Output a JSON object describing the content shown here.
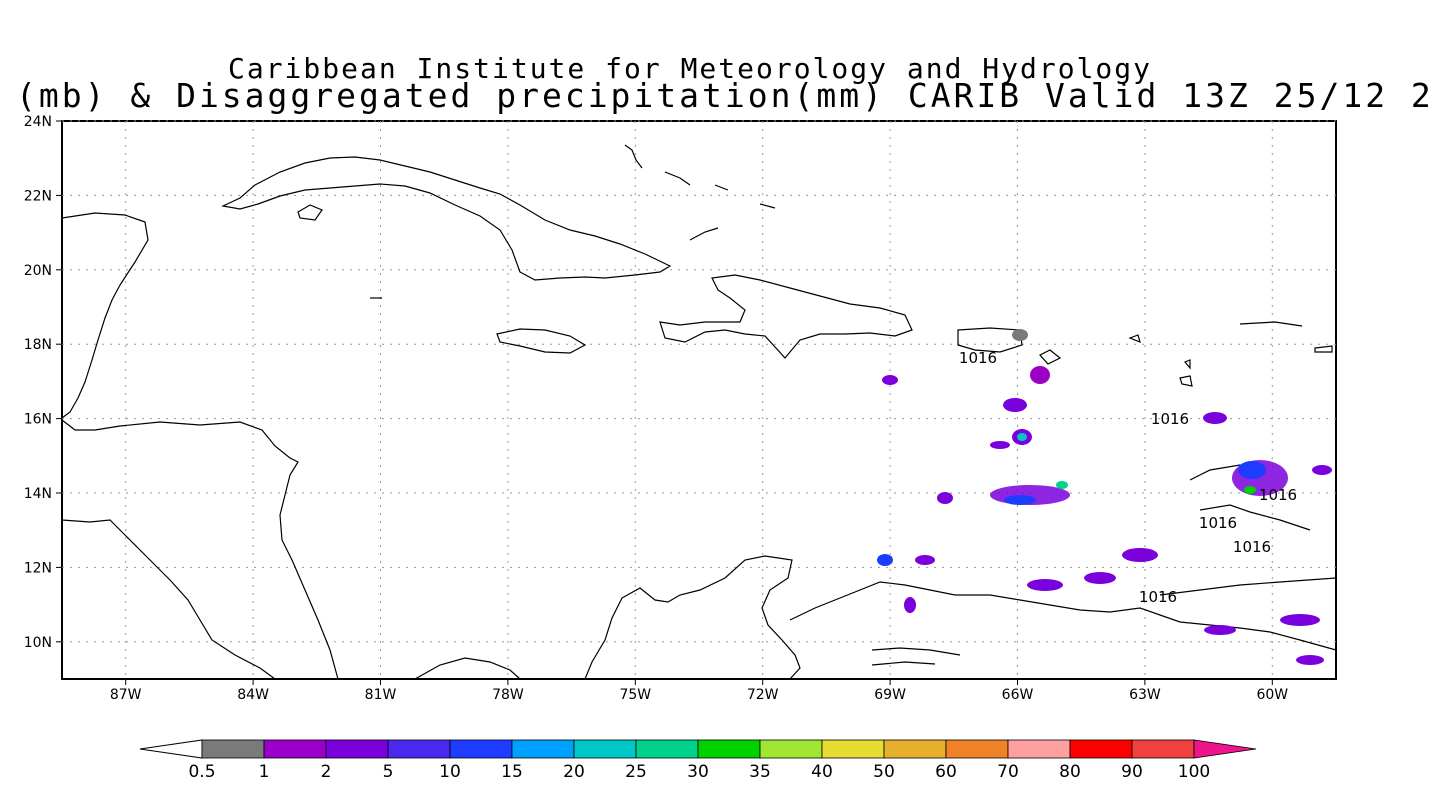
{
  "title": {
    "line1": "Caribbean Institute for Meteorology and Hydrology",
    "line2": "(mb) & Disaggregated precipitation(mm) CARIB Valid 13Z 25/12 2"
  },
  "map": {
    "lon_range": [
      -88.5,
      -58.5
    ],
    "lat_range": [
      9,
      24
    ],
    "lon_ticks": [
      "87W",
      "84W",
      "81W",
      "78W",
      "75W",
      "72W",
      "69W",
      "66W",
      "63W",
      "60W"
    ],
    "lat_ticks": [
      "24N",
      "22N",
      "20N",
      "18N",
      "16N",
      "14N",
      "12N",
      "10N"
    ],
    "grid": true,
    "contour_labels": [
      "1016",
      "1016",
      "1016",
      "1016",
      "1016",
      "1016"
    ]
  },
  "colorbar": {
    "labels": [
      "0.5",
      "1",
      "2",
      "5",
      "10",
      "15",
      "20",
      "25",
      "30",
      "35",
      "40",
      "50",
      "60",
      "70",
      "80",
      "90",
      "100"
    ],
    "colors": [
      "#7a7a7a",
      "#9b00c8",
      "#7a00dc",
      "#4b28f0",
      "#1e3cff",
      "#00a0ff",
      "#00c8c8",
      "#00d28c",
      "#00d200",
      "#a0e632",
      "#e6dc32",
      "#e6af2d",
      "#f08228",
      "#ffa0a0",
      "#ff0000",
      "#f04040",
      "#f0148c"
    ]
  }
}
